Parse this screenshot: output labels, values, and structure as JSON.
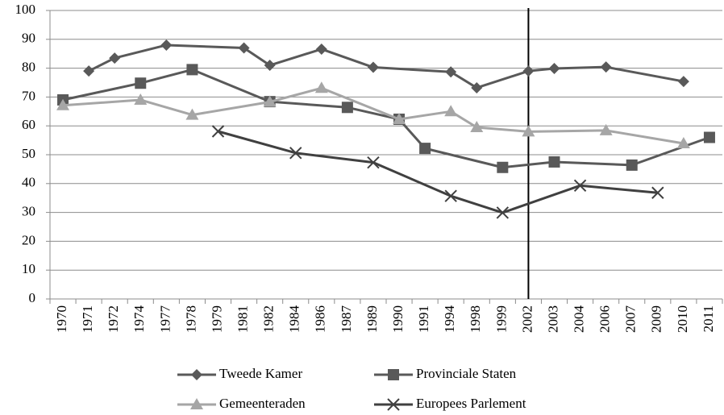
{
  "chart_data": {
    "type": "line",
    "categories": [
      "1970",
      "1971",
      "1972",
      "1974",
      "1977",
      "1978",
      "1979",
      "1981",
      "1982",
      "1984",
      "1986",
      "1987",
      "1989",
      "1990",
      "1991",
      "1994",
      "1998",
      "1999",
      "2002",
      "2003",
      "2004",
      "2006",
      "2007",
      "2009",
      "2010",
      "2011"
    ],
    "series": [
      {
        "name": "Tweede Kamer",
        "color": "#595959",
        "marker": "diamond",
        "values": [
          null,
          79,
          83.5,
          null,
          88,
          null,
          null,
          87,
          81,
          null,
          86.6,
          null,
          80.3,
          null,
          null,
          78.7,
          73.2,
          null,
          79,
          79.9,
          null,
          80.4,
          null,
          null,
          75.4,
          null
        ]
      },
      {
        "name": "Provinciale Staten",
        "color": "#595959",
        "marker": "square",
        "values": [
          69,
          null,
          null,
          74.8,
          null,
          79.5,
          null,
          null,
          68.4,
          null,
          null,
          66.4,
          null,
          62.3,
          52.2,
          null,
          null,
          45.6,
          null,
          47.5,
          null,
          null,
          46.4,
          null,
          null,
          56
        ]
      },
      {
        "name": "Gemeenteraden",
        "color": "#a6a6a6",
        "marker": "triangle",
        "values": [
          67.1,
          null,
          null,
          69,
          null,
          63.8,
          null,
          null,
          68.3,
          null,
          73.1,
          null,
          null,
          62.3,
          null,
          65,
          59.5,
          null,
          58,
          null,
          null,
          58.4,
          null,
          null,
          53.9,
          null
        ]
      },
      {
        "name": "Europees Parlement",
        "color": "#404040",
        "marker": "x",
        "values": [
          null,
          null,
          null,
          null,
          null,
          null,
          58.1,
          null,
          null,
          50.6,
          null,
          null,
          47.3,
          null,
          null,
          35.7,
          null,
          29.9,
          null,
          null,
          39.3,
          null,
          null,
          36.8,
          null,
          null
        ]
      }
    ],
    "ylim": [
      0,
      100
    ],
    "yticks": [
      0,
      10,
      20,
      30,
      40,
      50,
      60,
      70,
      80,
      90,
      100
    ],
    "grid": true,
    "span_gaps": true,
    "vertical_line_at": "2002",
    "legend": "bottom"
  }
}
